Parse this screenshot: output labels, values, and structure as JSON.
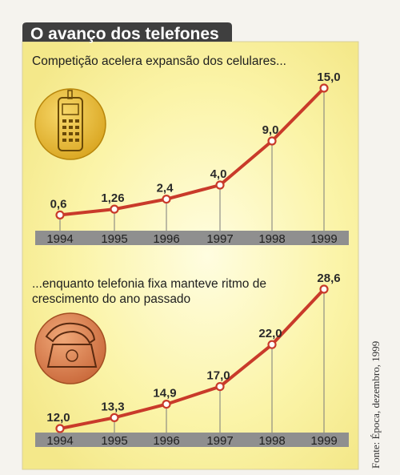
{
  "title": "O avanço dos telefones",
  "source": "Fonte: Época, dezembro, 1999",
  "colors": {
    "line": "#c93a2a",
    "marker_fill": "#ffffff",
    "title_bg": "#3f3f3f",
    "panel_bg": "#fbf6b8",
    "axis_band": "#8f8f8f"
  },
  "icons": [
    "mobile-phone-icon",
    "landline-phone-icon"
  ],
  "chart_data": [
    {
      "type": "line",
      "title": "Competição acelera expansão dos celulares...",
      "categories": [
        "1994",
        "1995",
        "1996",
        "1997",
        "1998",
        "1999"
      ],
      "values": [
        0.6,
        1.26,
        2.4,
        4.0,
        9.0,
        15.0
      ],
      "labels": [
        "0,6",
        "1,26",
        "2,4",
        "4,0",
        "9,0",
        "15,0"
      ],
      "ylim": [
        0,
        15
      ],
      "grid": false
    },
    {
      "type": "line",
      "title": "...enquanto telefonia fixa manteve ritmo de crescimento do ano passado",
      "title_lines": [
        "...enquanto telefonia fixa manteve ritmo de",
        "crescimento do ano passado"
      ],
      "categories": [
        "1994",
        "1995",
        "1996",
        "1997",
        "1998",
        "1999"
      ],
      "values": [
        12.0,
        13.3,
        14.9,
        17.0,
        22.0,
        28.6
      ],
      "labels": [
        "12,0",
        "13,3",
        "14,9",
        "17,0",
        "22,0",
        "28,6"
      ],
      "ylim": [
        12,
        28.6
      ],
      "grid": false
    }
  ]
}
